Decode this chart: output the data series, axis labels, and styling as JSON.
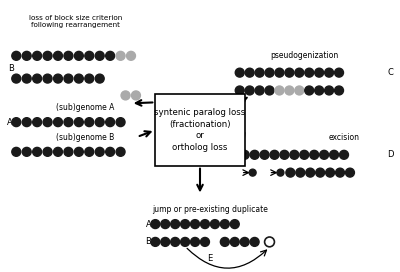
{
  "bg_color": "#ffffff",
  "dot_black": "#1a1a1a",
  "dot_gray": "#aaaaaa",
  "box_text": "syntenic paralog loss\n(fractionation)\nor\northolog loss",
  "label_top_left": "loss of block size criterion\nfollowing rearrangement",
  "label_pseudo": "pseudogenization",
  "label_excision": "excision",
  "label_jump": "jump or pre-existing duplicate",
  "label_subA": "(sub)genome A",
  "label_subB": "(sub)genome B"
}
